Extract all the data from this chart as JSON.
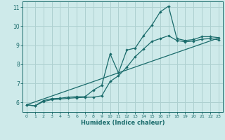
{
  "title": "",
  "xlabel": "Humidex (Indice chaleur)",
  "ylabel": "",
  "xlim": [
    -0.5,
    23.5
  ],
  "ylim": [
    5.5,
    11.3
  ],
  "xticks": [
    0,
    1,
    2,
    3,
    4,
    5,
    6,
    7,
    8,
    9,
    10,
    11,
    12,
    13,
    14,
    15,
    16,
    17,
    18,
    19,
    20,
    21,
    22,
    23
  ],
  "yticks": [
    6,
    7,
    8,
    9,
    10,
    11
  ],
  "bg_color": "#ceeaea",
  "line_color": "#1a6b6b",
  "grid_color": "#aed0d0",
  "line1_x": [
    0,
    1,
    2,
    3,
    4,
    5,
    6,
    7,
    8,
    9,
    10,
    11,
    12,
    13,
    14,
    15,
    16,
    17,
    18,
    19,
    20,
    21,
    22,
    23
  ],
  "line1_y": [
    5.88,
    5.82,
    6.1,
    6.2,
    6.22,
    6.28,
    6.3,
    6.3,
    6.65,
    6.9,
    8.55,
    7.55,
    8.75,
    8.85,
    9.5,
    10.05,
    10.75,
    11.05,
    9.35,
    9.25,
    9.3,
    9.45,
    9.45,
    9.4
  ],
  "line2_x": [
    0,
    1,
    2,
    3,
    4,
    5,
    6,
    7,
    8,
    9,
    10,
    11,
    12,
    13,
    14,
    15,
    16,
    17,
    18,
    19,
    20,
    21,
    22,
    23
  ],
  "line2_y": [
    5.88,
    5.82,
    6.05,
    6.15,
    6.18,
    6.22,
    6.25,
    6.27,
    6.28,
    6.35,
    7.1,
    7.4,
    7.85,
    8.4,
    8.8,
    9.2,
    9.35,
    9.5,
    9.25,
    9.18,
    9.22,
    9.32,
    9.35,
    9.28
  ],
  "line3_x": [
    0,
    23
  ],
  "line3_y": [
    5.88,
    9.38
  ]
}
